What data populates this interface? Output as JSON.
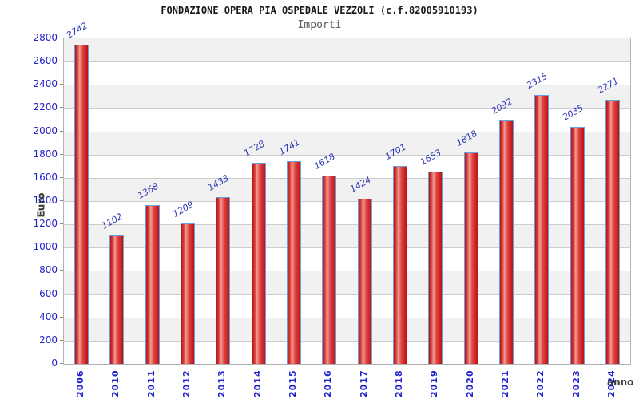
{
  "header": {
    "title": "FONDAZIONE OPERA PIA OSPEDALE VEZZOLI (c.f.82005910193)",
    "subtitle": "Importi"
  },
  "axes": {
    "y_title": "Euro",
    "x_title": "anno"
  },
  "chart_data": {
    "type": "bar",
    "title": "FONDAZIONE OPERA PIA OSPEDALE VEZZOLI (c.f.82005910193)",
    "subtitle": "Importi",
    "xlabel": "anno",
    "ylabel": "Euro",
    "categories": [
      "2006",
      "2010",
      "2011",
      "2012",
      "2013",
      "2014",
      "2015",
      "2016",
      "2017",
      "2018",
      "2019",
      "2020",
      "2021",
      "2022",
      "2023",
      "2024"
    ],
    "values": [
      2742,
      1102,
      1368,
      1209,
      1433,
      1728,
      1741,
      1618,
      1424,
      1701,
      1653,
      1818,
      2092,
      2315,
      2035,
      2271
    ],
    "ylim": [
      0,
      2800
    ],
    "ytick_step": 200,
    "yticks": [
      0,
      200,
      400,
      600,
      800,
      1000,
      1200,
      1400,
      1600,
      1800,
      2000,
      2200,
      2400,
      2600,
      2800
    ],
    "grid": "horizontal",
    "legend": "none",
    "band_shading": "alternating",
    "colors": {
      "bar_fill_dark": "#c01212",
      "bar_fill_light": "#f29b95",
      "bar_border": "#66a0e0",
      "tick_text": "#2222cc",
      "value_text": "#2b35b5",
      "band_gray": "#f1f1f1",
      "band_white": "#ffffff",
      "gridline": "#cccccc",
      "axis_title_text": "#3c3c3c",
      "title_text": "#1a1a1a",
      "subtitle_text": "#5a5a5a"
    }
  }
}
